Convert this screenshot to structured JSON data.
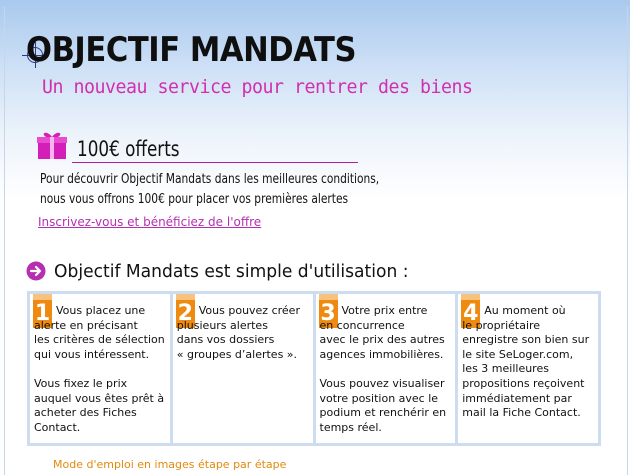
{
  "header": {
    "title": "OBJECTIF MANDATS",
    "subtitle": "Un nouveau service pour rentrer des biens"
  },
  "offer": {
    "icon": "gift-icon",
    "title": "100€ offerts",
    "line1": "Pour découvrir Objectif Mandats dans les meilleures conditions,",
    "line2": "nous vous offrons 100€ pour placer vos premières alertes",
    "link": "Inscrivez-vous et bénéficiez de l'offre"
  },
  "section": {
    "icon": "arrow-right-circle-icon",
    "title": "Objectif Mandats est simple d'utilisation :"
  },
  "steps": [
    {
      "number": "1",
      "first": "Vous placez une",
      "rest": "alerte en précisant\nles critères de sélection\nqui vous intéressent.\n\nVous fixez le prix\nauquel vous êtes prêt à\nacheter des Fiches\nContact."
    },
    {
      "number": "2",
      "first": "Vous pouvez créer",
      "rest": "plusieurs alertes\ndans vos dossiers\n« groupes d’alertes »."
    },
    {
      "number": "3",
      "first": "Votre prix entre",
      "rest": "en concurrence\navec le prix des autres\nagences immobilières.\n\nVous pouvez visualiser\nvotre position avec le\npodium et renchérir en\ntemps réel."
    },
    {
      "number": "4",
      "first": "Au moment où",
      "rest": "le propriétaire\nenregistre son bien sur\nle site SeLoger.com,\nles 3 meilleures\npropositions reçoivent\nimmédiatement par\nmail la Fiche Contact."
    }
  ],
  "footer": {
    "link": "Mode d'emploi en images étape par étape"
  },
  "colors": {
    "accent_pink": "#b62fb0",
    "accent_orange": "#ee8a10",
    "panel_blue": "#cddcee"
  }
}
